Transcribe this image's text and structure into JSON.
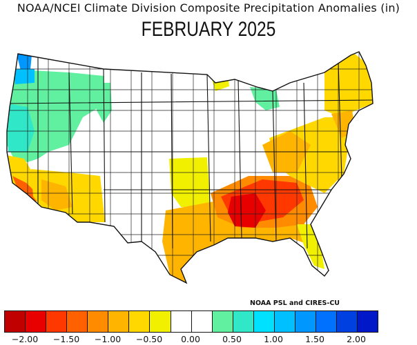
{
  "header": {
    "title": "NOAA/NCEI Climate Division Composite Precipitation Anomalies (in)",
    "month_label": "FEBRUARY 2025"
  },
  "credit": "NOAA PSL and CIRES-CU",
  "legend": {
    "colors": [
      "#c00000",
      "#e80000",
      "#ff3800",
      "#ff6000",
      "#ff8c00",
      "#ffb400",
      "#ffd800",
      "#f0f000",
      "#ffffff",
      "#ffffff",
      "#60f0a0",
      "#30e8c8",
      "#00e0ff",
      "#00c0ff",
      "#0098ff",
      "#0070ff",
      "#0040e0",
      "#0018c8"
    ],
    "tick_labels": [
      "−2.00",
      "−1.50",
      "−1.00",
      "−0.50",
      "0.00",
      "0.50",
      "1.00",
      "1.50",
      "2.00"
    ]
  },
  "map": {
    "regions": [
      {
        "name": "pacific-northwest-wet",
        "category": "+0.50",
        "color": "#30e8c8"
      },
      {
        "name": "northern-idaho-wet",
        "category": "+0.50",
        "color": "#60f0a0"
      },
      {
        "name": "western-washington-very-wet",
        "category": "+1.50",
        "color": "#0098ff"
      },
      {
        "name": "southern-california-very-dry",
        "category": "-1.50",
        "color": "#ff6000"
      },
      {
        "name": "southwest-dry",
        "category": "-0.50",
        "color": "#ffd800"
      },
      {
        "name": "great-plains-dry",
        "category": "-0.25",
        "color": "#f0f000"
      },
      {
        "name": "gulf-coast-dry",
        "category": "-1.00",
        "color": "#ffb400"
      },
      {
        "name": "lower-mississippi-very-dry",
        "category": "-2.00",
        "color": "#e80000"
      },
      {
        "name": "tennessee-valley-very-dry",
        "category": "-1.50",
        "color": "#ff3800"
      },
      {
        "name": "southeast-dry",
        "category": "-1.00",
        "color": "#ff8c00"
      },
      {
        "name": "atlantic-coast-dry",
        "category": "-0.50",
        "color": "#ffd800"
      },
      {
        "name": "new-england-dry",
        "category": "-0.50",
        "color": "#ffd800"
      },
      {
        "name": "michigan-wet",
        "category": "+0.50",
        "color": "#60f0a0"
      },
      {
        "name": "northern-minnesota-dry",
        "category": "-0.25",
        "color": "#f0f000"
      }
    ]
  }
}
